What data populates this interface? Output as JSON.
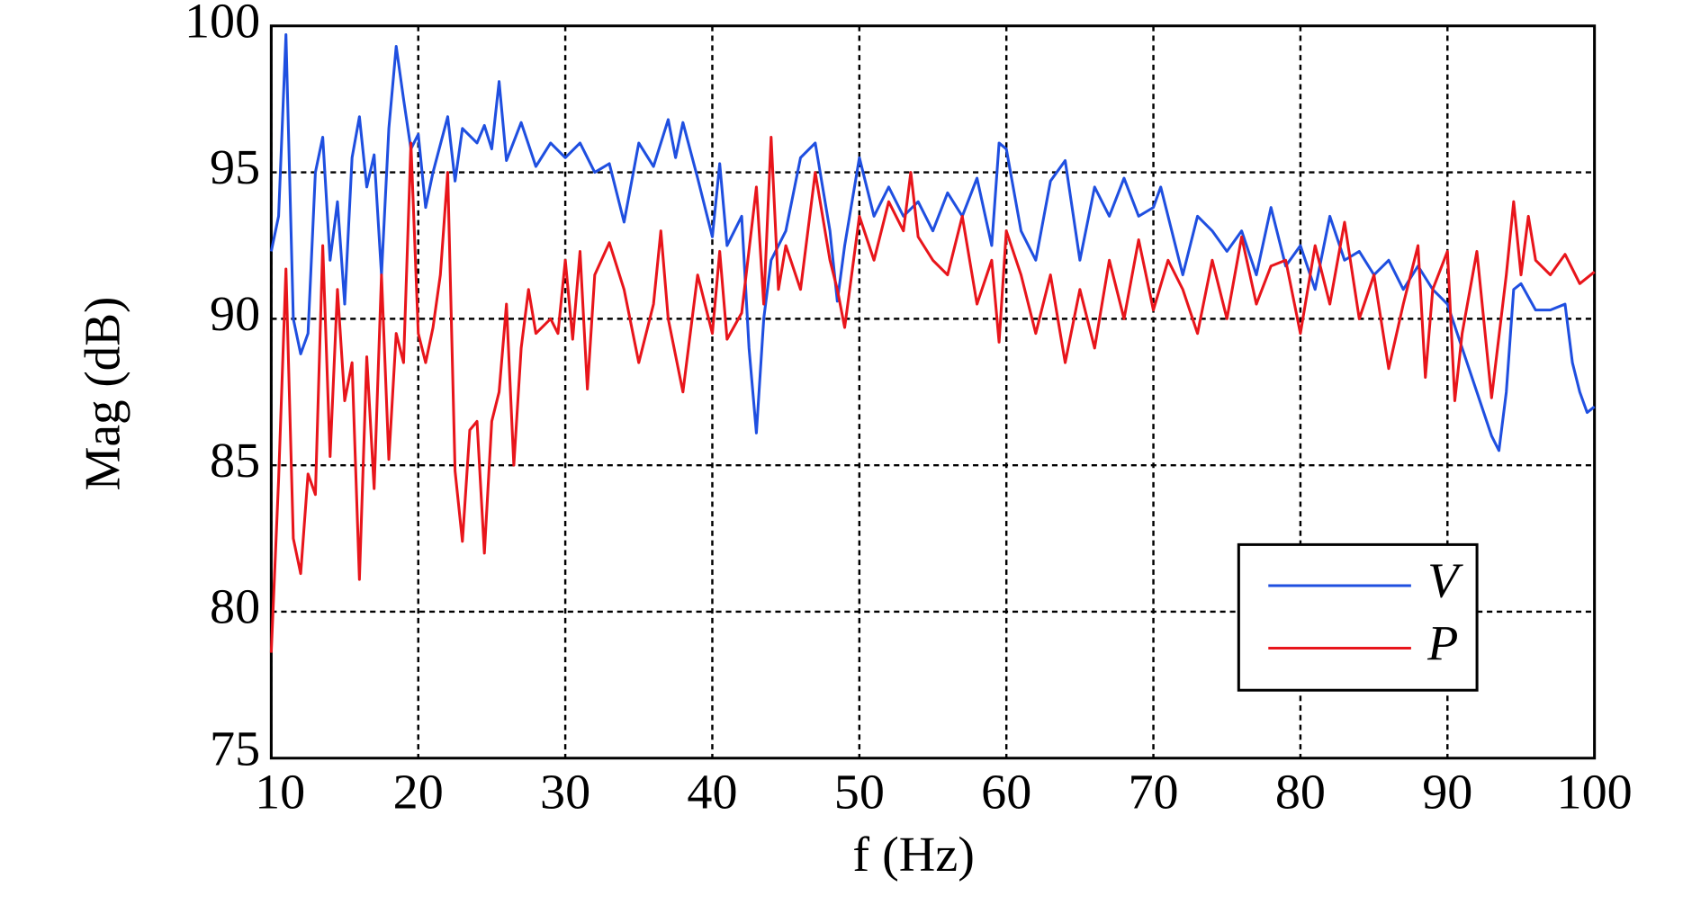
{
  "chart_data": {
    "type": "line",
    "xlabel": "f (Hz)",
    "ylabel": "Mag (dB)",
    "xlim": [
      10,
      100
    ],
    "ylim": [
      75,
      100
    ],
    "xticks": [
      10,
      20,
      30,
      40,
      50,
      60,
      70,
      80,
      90,
      100
    ],
    "yticks": [
      75,
      80,
      85,
      90,
      95,
      100
    ],
    "grid": true,
    "legend": "lower right",
    "series": [
      {
        "name": "V",
        "color": "#1f4fe0",
        "x": [
          10,
          10.5,
          11,
          11.5,
          12,
          12.5,
          13,
          13.5,
          14,
          14.5,
          15,
          15.5,
          16,
          16.5,
          17,
          17.5,
          18,
          18.5,
          19,
          19.5,
          20,
          20.5,
          21,
          22,
          22.5,
          23,
          24,
          24.5,
          25,
          25.5,
          26,
          27,
          28,
          29,
          30,
          31,
          32,
          33,
          34,
          35,
          36,
          37,
          37.5,
          38,
          39,
          40,
          40.5,
          41,
          42,
          42.5,
          43,
          43.5,
          44,
          45,
          46,
          47,
          48,
          48.5,
          49,
          50,
          51,
          52,
          53,
          54,
          55,
          56,
          57,
          58,
          59,
          59.5,
          60,
          61,
          62,
          63,
          64,
          65,
          66,
          67,
          68,
          69,
          70,
          70.5,
          71,
          72,
          73,
          74,
          75,
          76,
          77,
          78,
          79,
          80,
          81,
          82,
          83,
          84,
          85,
          86,
          87,
          88,
          89,
          90,
          91,
          92,
          93,
          93.5,
          94,
          94.5,
          95,
          96,
          97,
          98,
          98.5,
          99,
          99.5,
          100
        ],
        "values": [
          92.3,
          93.5,
          99.7,
          90,
          88.8,
          89.5,
          95,
          96.2,
          92,
          94,
          90.5,
          95.5,
          96.9,
          94.5,
          95.6,
          91.5,
          96.5,
          99.3,
          97.5,
          95.8,
          96.3,
          93.8,
          95,
          96.9,
          94.7,
          96.5,
          96,
          96.6,
          95.8,
          98.1,
          95.4,
          96.7,
          95.2,
          96,
          95.5,
          96,
          95,
          95.3,
          93.3,
          96,
          95.2,
          96.8,
          95.5,
          96.7,
          94.8,
          92.8,
          95.3,
          92.5,
          93.5,
          89,
          86.1,
          90,
          92,
          93,
          95.5,
          96,
          93,
          90.6,
          92.5,
          95.5,
          93.5,
          94.5,
          93.5,
          94,
          93,
          94.3,
          93.5,
          94.8,
          92.5,
          96,
          95.8,
          93,
          92,
          94.7,
          95.4,
          92,
          94.5,
          93.5,
          94.8,
          93.5,
          93.8,
          94.5,
          93.5,
          91.5,
          93.5,
          93,
          92.3,
          93,
          91.5,
          93.8,
          91.8,
          92.5,
          91,
          93.5,
          92,
          92.3,
          91.5,
          92,
          91,
          91.8,
          91,
          90.5,
          89,
          87.5,
          86,
          85.5,
          87.5,
          91,
          91.2,
          90.3,
          90.3,
          90.5,
          88.5,
          87.5,
          86.8,
          87
        ]
      },
      {
        "name": "P",
        "color": "#e8151b",
        "x": [
          10,
          10.5,
          11,
          11.5,
          12,
          12.5,
          13,
          13.5,
          14,
          14.5,
          15,
          15.5,
          16,
          16.5,
          17,
          17.5,
          18,
          18.5,
          19,
          19.5,
          20,
          20.5,
          21,
          21.5,
          22,
          22.5,
          23,
          23.5,
          24,
          24.5,
          25,
          25.5,
          26,
          26.5,
          27,
          27.5,
          28,
          29,
          29.5,
          30,
          30.5,
          31,
          31.5,
          32,
          33,
          34,
          35,
          36,
          36.5,
          37,
          38,
          39,
          40,
          40.5,
          41,
          42,
          43,
          43.5,
          44,
          44.5,
          45,
          46,
          47,
          48,
          48.5,
          49,
          50,
          51,
          52,
          53,
          53.5,
          54,
          55,
          56,
          57,
          58,
          59,
          59.5,
          60,
          61,
          62,
          63,
          64,
          65,
          66,
          67,
          68,
          69,
          70,
          71,
          72,
          73,
          74,
          75,
          76,
          77,
          78,
          79,
          80,
          81,
          82,
          83,
          84,
          85,
          86,
          87,
          88,
          88.5,
          89,
          90,
          90.5,
          91,
          92,
          93,
          94,
          94.5,
          95,
          95.5,
          96,
          97,
          98,
          99,
          100
        ],
        "values": [
          78.6,
          84.5,
          91.7,
          82.5,
          81.3,
          84.7,
          84,
          92.5,
          85.3,
          91,
          87.2,
          88.5,
          81.1,
          88.7,
          84.2,
          91.5,
          85.2,
          89.5,
          88.5,
          96,
          89.5,
          88.5,
          89.7,
          91.5,
          95,
          84.8,
          82.4,
          86.2,
          86.5,
          82,
          86.5,
          87.5,
          90.5,
          85,
          89,
          91,
          89.5,
          90,
          89.5,
          92,
          89.3,
          92.3,
          87.6,
          91.5,
          92.6,
          91,
          88.5,
          90.5,
          93,
          90,
          87.5,
          91.5,
          89.5,
          92.3,
          89.3,
          90.2,
          94.5,
          90.5,
          96.2,
          91,
          92.5,
          91,
          95,
          92,
          91,
          89.7,
          93.5,
          92,
          94,
          93,
          95,
          92.8,
          92,
          91.5,
          93.5,
          90.5,
          92,
          89.2,
          93,
          91.5,
          89.5,
          91.5,
          88.5,
          91,
          89,
          92,
          90,
          92.7,
          90.3,
          92,
          91,
          89.5,
          92,
          90,
          92.8,
          90.5,
          91.8,
          92,
          89.5,
          92.5,
          90.5,
          93.3,
          90,
          91.5,
          88.3,
          90.5,
          92.5,
          88,
          91,
          92.3,
          87.2,
          89.5,
          92.3,
          87.3,
          91.5,
          94,
          91.5,
          93.5,
          92,
          91.5,
          92.2,
          91.2,
          91.6
        ]
      }
    ]
  }
}
